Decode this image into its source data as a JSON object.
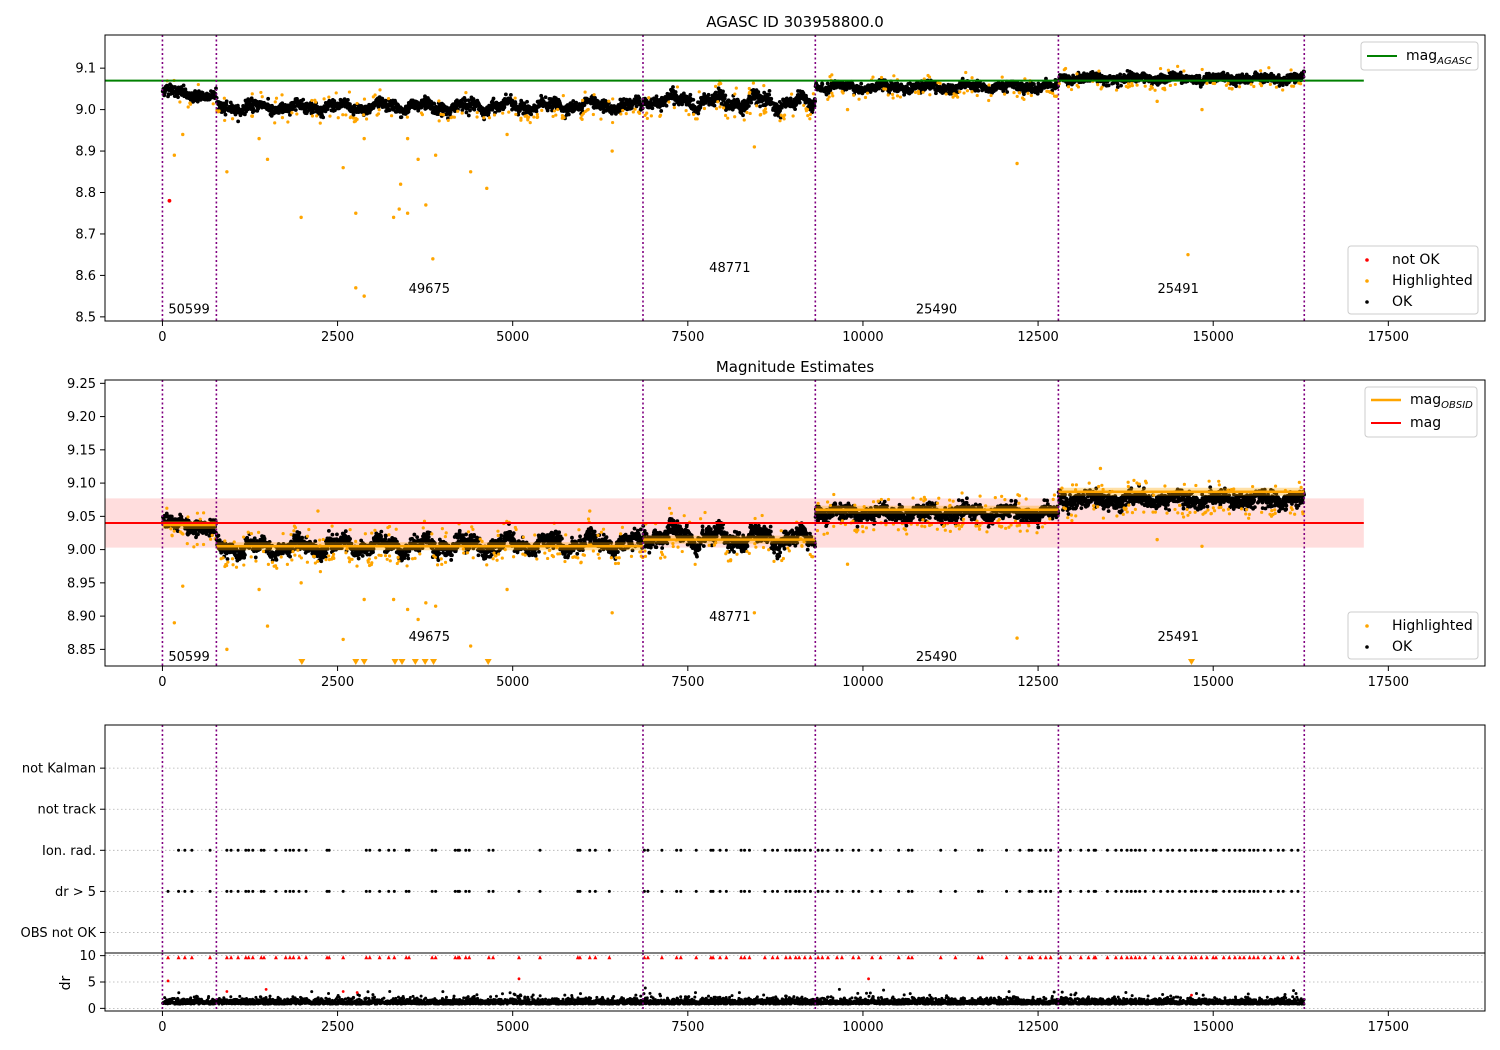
{
  "colors": {
    "ok": "#000000",
    "highlighted": "#ffa500",
    "not_ok": "#ff0000",
    "mag_agasc": "#008000",
    "mag_obsid": "#ffa500",
    "mag": "#ff0000",
    "mag_band": "#ffdddd",
    "obs_boundary": "#800080",
    "grid": "#b0b0b0"
  },
  "chart_data": [
    {
      "type": "scatter",
      "title": "AGASC ID 303958800.0",
      "xlim": [
        -820,
        18880
      ],
      "ylim": [
        8.49,
        9.18
      ],
      "x_ticks": [
        0,
        2500,
        5000,
        7500,
        10000,
        12500,
        15000,
        17500
      ],
      "y_ticks": [
        8.5,
        8.6,
        8.7,
        8.8,
        8.9,
        9.0,
        9.1
      ],
      "legend_upper": {
        "placement": "top-right",
        "entries": [
          {
            "name": "mag",
            "sub": "AGASC"
          }
        ]
      },
      "legend_lower": {
        "placement": "bottom-right",
        "entries": [
          "not OK",
          "Highlighted",
          "OK"
        ]
      },
      "horizontal_lines": [
        {
          "y": 9.07,
          "x": [
            -820,
            17150
          ],
          "role": "mag_agasc"
        }
      ],
      "obs_boundaries": [
        0,
        770,
        6860,
        9320,
        12790,
        16300
      ],
      "obsid_labels": [
        {
          "text": "50599",
          "x": 380,
          "y": 8.52
        },
        {
          "text": "49675",
          "x": 3810,
          "y": 8.57
        },
        {
          "text": "48771",
          "x": 8100,
          "y": 8.62
        },
        {
          "text": "25490",
          "x": 11050,
          "y": 8.52
        },
        {
          "text": "25491",
          "x": 14500,
          "y": 8.57
        }
      ],
      "ok_segments": [
        {
          "x": [
            0,
            770
          ],
          "y": [
            9.046,
            9.03
          ],
          "spread": 0.012,
          "wave": 0.004
        },
        {
          "x": [
            770,
            6860
          ],
          "y": [
            9.005,
            9.01
          ],
          "spread": 0.012,
          "wave": 0.008
        },
        {
          "x": [
            6860,
            9320
          ],
          "y": [
            9.025,
            9.015
          ],
          "spread": 0.014,
          "wave": 0.012
        },
        {
          "x": [
            9320,
            12790
          ],
          "y": [
            9.055,
            9.055
          ],
          "spread": 0.01,
          "wave": 0.005
        },
        {
          "x": [
            12790,
            16300
          ],
          "y": [
            9.075,
            9.075
          ],
          "spread": 0.01,
          "wave": 0.004
        }
      ],
      "highlighted_points": [
        {
          "x": 170,
          "y": 8.89
        },
        {
          "x": 290,
          "y": 8.94
        },
        {
          "x": 920,
          "y": 8.85
        },
        {
          "x": 1380,
          "y": 8.93
        },
        {
          "x": 1500,
          "y": 8.88
        },
        {
          "x": 1980,
          "y": 8.74
        },
        {
          "x": 2580,
          "y": 8.86
        },
        {
          "x": 2760,
          "y": 8.75
        },
        {
          "x": 2760,
          "y": 8.57
        },
        {
          "x": 2880,
          "y": 8.55
        },
        {
          "x": 2880,
          "y": 8.93
        },
        {
          "x": 3300,
          "y": 8.74
        },
        {
          "x": 3380,
          "y": 8.76
        },
        {
          "x": 3400,
          "y": 8.82
        },
        {
          "x": 3500,
          "y": 8.75
        },
        {
          "x": 3500,
          "y": 8.93
        },
        {
          "x": 3650,
          "y": 8.88
        },
        {
          "x": 3760,
          "y": 8.77
        },
        {
          "x": 3860,
          "y": 8.64
        },
        {
          "x": 3900,
          "y": 8.89
        },
        {
          "x": 4400,
          "y": 8.85
        },
        {
          "x": 4630,
          "y": 8.81
        },
        {
          "x": 4920,
          "y": 8.94
        },
        {
          "x": 6420,
          "y": 8.9
        },
        {
          "x": 8450,
          "y": 8.91
        },
        {
          "x": 9780,
          "y": 9.0
        },
        {
          "x": 12200,
          "y": 8.87
        },
        {
          "x": 14640,
          "y": 8.65
        },
        {
          "x": 14840,
          "y": 9.0
        },
        {
          "x": 14200,
          "y": 9.02
        }
      ],
      "not_ok_points": [
        {
          "x": 100,
          "y": 8.78
        }
      ]
    },
    {
      "type": "scatter",
      "title": "Magnitude Estimates",
      "xlim": [
        -820,
        18880
      ],
      "ylim": [
        8.825,
        9.255
      ],
      "x_ticks": [
        0,
        2500,
        5000,
        7500,
        10000,
        12500,
        15000,
        17500
      ],
      "y_ticks": [
        8.85,
        8.9,
        8.95,
        9.0,
        9.05,
        9.1,
        9.15,
        9.2,
        9.25
      ],
      "legend_upper": {
        "placement": "top-right",
        "entries": [
          {
            "name": "mag",
            "sub": "OBSID"
          },
          {
            "name": "mag",
            "sub": ""
          }
        ]
      },
      "legend_lower": {
        "placement": "bottom-right",
        "entries": [
          "Highlighted",
          "OK"
        ]
      },
      "mag_line": {
        "y": 9.04,
        "band": [
          9.003,
          9.077
        ],
        "x": [
          -820,
          17150
        ]
      },
      "obsid_mags": [
        {
          "x": [
            0,
            770
          ],
          "y": 9.037
        },
        {
          "x": [
            770,
            6860
          ],
          "y": 9.005
        },
        {
          "x": [
            6860,
            9320
          ],
          "y": 9.015
        },
        {
          "x": [
            9320,
            12790
          ],
          "y": 9.06
        },
        {
          "x": [
            12790,
            16300
          ],
          "y": 9.087
        }
      ],
      "obs_boundaries": [
        0,
        770,
        6860,
        9320,
        12790,
        16300
      ],
      "obsid_labels": [
        {
          "text": "50599",
          "x": 380,
          "y": 8.84
        },
        {
          "text": "49675",
          "x": 3810,
          "y": 8.87
        },
        {
          "text": "48771",
          "x": 8100,
          "y": 8.9
        },
        {
          "text": "25490",
          "x": 11050,
          "y": 8.84
        },
        {
          "text": "25491",
          "x": 14500,
          "y": 8.87
        }
      ],
      "ok_segments": [
        {
          "x": [
            0,
            770
          ],
          "y": [
            9.042,
            9.03
          ],
          "spread": 0.01,
          "wave": 0.004
        },
        {
          "x": [
            770,
            6860
          ],
          "y": [
            9.003,
            9.01
          ],
          "spread": 0.01,
          "wave": 0.008
        },
        {
          "x": [
            6860,
            9320
          ],
          "y": [
            9.022,
            9.015
          ],
          "spread": 0.012,
          "wave": 0.01
        },
        {
          "x": [
            9320,
            12790
          ],
          "y": [
            9.055,
            9.055
          ],
          "spread": 0.01,
          "wave": 0.005
        },
        {
          "x": [
            12790,
            16300
          ],
          "y": [
            9.075,
            9.075
          ],
          "spread": 0.01,
          "wave": 0.004
        }
      ],
      "highlighted_points": [
        {
          "x": 170,
          "y": 8.89
        },
        {
          "x": 290,
          "y": 8.945
        },
        {
          "x": 920,
          "y": 8.85
        },
        {
          "x": 1380,
          "y": 8.94
        },
        {
          "x": 1500,
          "y": 8.885
        },
        {
          "x": 1980,
          "y": 8.95
        },
        {
          "x": 2580,
          "y": 8.865
        },
        {
          "x": 2880,
          "y": 8.925
        },
        {
          "x": 3300,
          "y": 8.925
        },
        {
          "x": 3500,
          "y": 8.91
        },
        {
          "x": 3650,
          "y": 8.895
        },
        {
          "x": 3760,
          "y": 8.92
        },
        {
          "x": 3900,
          "y": 8.915
        },
        {
          "x": 4400,
          "y": 8.855
        },
        {
          "x": 4920,
          "y": 8.94
        },
        {
          "x": 6420,
          "y": 8.905
        },
        {
          "x": 8450,
          "y": 8.905
        },
        {
          "x": 9780,
          "y": 8.978
        },
        {
          "x": 12200,
          "y": 8.867
        },
        {
          "x": 14200,
          "y": 9.015
        },
        {
          "x": 14840,
          "y": 9.005
        },
        {
          "x": 2220,
          "y": 9.058
        },
        {
          "x": 6100,
          "y": 9.058
        },
        {
          "x": 13390,
          "y": 9.122
        }
      ],
      "clipped_points_x": [
        1990,
        2760,
        2880,
        3320,
        3420,
        3610,
        3750,
        3870,
        4650,
        14690
      ]
    },
    {
      "type": "scatter",
      "title": "",
      "xlim": [
        -820,
        18880
      ],
      "categories": [
        "OBS not OK",
        "dr > 5",
        "Ion. rad.",
        "not track",
        "not Kalman"
      ],
      "obs_boundaries": [
        0,
        770,
        6860,
        9320,
        12790,
        16300
      ],
      "flags": {
        "Ion. rad.": [
          230,
          320,
          420,
          680,
          920,
          980,
          1080,
          1190,
          1230,
          1290,
          1410,
          1450,
          1620,
          1760,
          1820,
          1870,
          1950,
          2050,
          2350,
          2380,
          2910,
          2960,
          3100,
          3230,
          3310,
          3480,
          3520,
          3850,
          3900,
          4180,
          4220,
          4240,
          4330,
          4380,
          4660,
          4720,
          5390,
          5930,
          5960,
          6100,
          6180,
          6380,
          6880,
          6930,
          7130,
          7340,
          7400,
          7620,
          7830,
          7860,
          7960,
          8050,
          8260,
          8310,
          8380,
          8600,
          8710,
          8780,
          8900,
          8960,
          9040,
          9090,
          9170,
          9250,
          9360,
          9420,
          9500,
          9630,
          9700,
          9860,
          9940,
          10130,
          10250,
          10510,
          10650,
          10700,
          11110,
          11320,
          11650,
          11700,
          12050,
          12240,
          12370,
          12410,
          12530,
          12610,
          12680,
          12820,
          12960,
          13110,
          13220,
          13300,
          13320,
          13490,
          13610,
          13690,
          13770,
          13830,
          13890,
          13950,
          14030,
          14150,
          14250,
          14350,
          14420,
          14520,
          14600,
          14690,
          14750,
          14830,
          14910,
          15000,
          15040,
          15150,
          15230,
          15310,
          15380,
          15440,
          15520,
          15580,
          15640,
          15730,
          15820,
          15930,
          16000,
          16120,
          16210
        ],
        "dr > 5": [
          80,
          230,
          320,
          420,
          680,
          920,
          980,
          1080,
          1190,
          1230,
          1290,
          1410,
          1450,
          1620,
          1760,
          1820,
          1870,
          1950,
          2050,
          2350,
          2380,
          2580,
          2910,
          2960,
          3100,
          3230,
          3310,
          3480,
          3520,
          3850,
          3900,
          4180,
          4220,
          4240,
          4330,
          4380,
          4660,
          4720,
          5090,
          5390,
          5930,
          5960,
          6100,
          6180,
          6380,
          6880,
          6930,
          7130,
          7340,
          7400,
          7620,
          7830,
          7860,
          7960,
          8050,
          8260,
          8310,
          8380,
          8600,
          8710,
          8780,
          8900,
          8960,
          9040,
          9090,
          9170,
          9250,
          9360,
          9420,
          9500,
          9630,
          9700,
          9860,
          9940,
          10130,
          10250,
          10510,
          10650,
          10700,
          11110,
          11320,
          11650,
          11700,
          12050,
          12240,
          12370,
          12410,
          12530,
          12610,
          12680,
          12820,
          12960,
          13110,
          13220,
          13300,
          13320,
          13490,
          13610,
          13690,
          13770,
          13830,
          13890,
          13950,
          14030,
          14150,
          14250,
          14350,
          14420,
          14520,
          14600,
          14690,
          14750,
          14830,
          14910,
          15000,
          15040,
          15150,
          15230,
          15310,
          15380,
          15440,
          15520,
          15580,
          15640,
          15730,
          15820,
          15930,
          16000,
          16120,
          16210
        ]
      }
    },
    {
      "type": "scatter",
      "title": "",
      "ylabel": "dr",
      "xlim": [
        -820,
        18880
      ],
      "ylim": [
        -0.5,
        10.5
      ],
      "x_ticks": [
        0,
        2500,
        5000,
        7500,
        10000,
        12500,
        15000,
        17500
      ],
      "y_ticks": [
        0,
        5,
        10
      ],
      "dr_baseline": {
        "x": [
          0,
          16300
        ],
        "mean": 0.8,
        "spread": 0.6
      },
      "dr_outliers": [
        {
          "x": 80,
          "y": 5.2
        },
        {
          "x": 920,
          "y": 3.2
        },
        {
          "x": 1480,
          "y": 3.6
        },
        {
          "x": 2580,
          "y": 3.2
        },
        {
          "x": 2780,
          "y": 3.0
        },
        {
          "x": 5090,
          "y": 5.6
        },
        {
          "x": 10080,
          "y": 5.6
        },
        {
          "x": 14690,
          "y": 2.5
        }
      ]
    }
  ]
}
